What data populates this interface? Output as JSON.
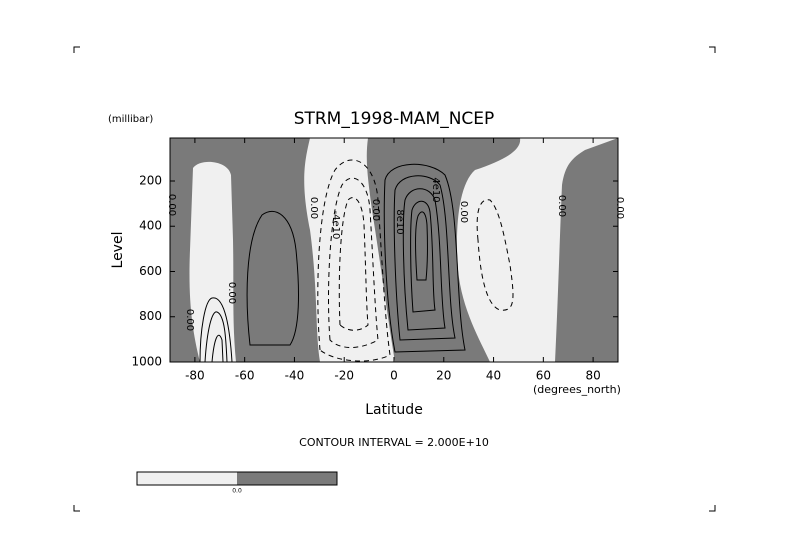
{
  "chart_data": {
    "type": "contour",
    "title": "STRM_1998-MAM_NCEP",
    "y_unit": "(millibar)",
    "ylabel": "Level",
    "xlabel": "Latitude",
    "x_unit": "(degrees_north)",
    "note": "CONTOUR INTERVAL = 2.000E+10",
    "xlim": [
      -90,
      90
    ],
    "xticks": [
      -80,
      -60,
      -40,
      -20,
      0,
      20,
      40,
      60,
      80
    ],
    "ylim": [
      1000,
      10
    ],
    "yticks": [
      200,
      400,
      600,
      800,
      1000
    ],
    "contour_labels": [
      "0.00",
      "0.00",
      "0.00",
      "0.00",
      "-4e10",
      "0.00",
      "4e10",
      "8e10",
      "0.00",
      "0.00",
      "0.00"
    ],
    "colorbar": {
      "colors": [
        "#f0f0f0",
        "#7a7a7a"
      ],
      "label": "0.0"
    }
  }
}
